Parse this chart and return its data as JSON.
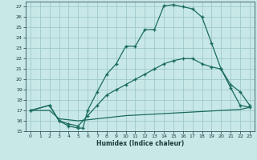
{
  "xlabel": "Humidex (Indice chaleur)",
  "bg_color": "#c8e8e8",
  "line_color": "#1a6b5a",
  "grid_color": "#a0c8c8",
  "xlim": [
    -0.5,
    23.5
  ],
  "ylim": [
    15,
    27.5
  ],
  "xticks": [
    0,
    1,
    2,
    3,
    4,
    5,
    6,
    7,
    8,
    9,
    10,
    11,
    12,
    13,
    14,
    15,
    16,
    17,
    18,
    19,
    20,
    21,
    22,
    23
  ],
  "yticks": [
    15,
    16,
    17,
    18,
    19,
    20,
    21,
    22,
    23,
    24,
    25,
    26,
    27
  ],
  "line1_x": [
    0,
    2,
    3,
    4,
    5,
    5.5,
    6,
    7,
    8,
    9,
    10,
    11,
    12,
    13,
    14,
    15,
    16,
    17,
    18,
    19,
    20,
    21,
    22,
    23
  ],
  "line1_y": [
    17,
    17.5,
    16,
    15.5,
    15.3,
    15.3,
    17,
    18.8,
    20.5,
    21.5,
    23.2,
    23.2,
    24.8,
    24.8,
    27.1,
    27.2,
    27.0,
    26.8,
    26.0,
    23.5,
    21.0,
    19.2,
    17.5,
    17.3
  ],
  "line2_x": [
    0,
    2,
    3,
    4,
    5,
    6,
    7,
    8,
    9,
    10,
    11,
    12,
    13,
    14,
    15,
    16,
    17,
    18,
    19,
    20,
    21,
    22,
    23
  ],
  "line2_y": [
    17,
    17.5,
    16.0,
    15.7,
    15.5,
    16.5,
    17.5,
    18.5,
    19.0,
    19.5,
    20.0,
    20.5,
    21.0,
    21.5,
    21.8,
    22.0,
    22.0,
    21.5,
    21.2,
    21.0,
    19.5,
    18.8,
    17.5
  ],
  "line3_x": [
    0,
    2,
    3,
    4,
    5,
    6,
    7,
    8,
    9,
    10,
    11,
    12,
    13,
    14,
    15,
    16,
    17,
    18,
    19,
    20,
    21,
    22,
    23
  ],
  "line3_y": [
    17,
    17.0,
    16.2,
    16.1,
    16.0,
    16.1,
    16.2,
    16.3,
    16.4,
    16.5,
    16.55,
    16.6,
    16.65,
    16.7,
    16.75,
    16.8,
    16.85,
    16.9,
    16.95,
    17.0,
    17.05,
    17.1,
    17.3
  ]
}
